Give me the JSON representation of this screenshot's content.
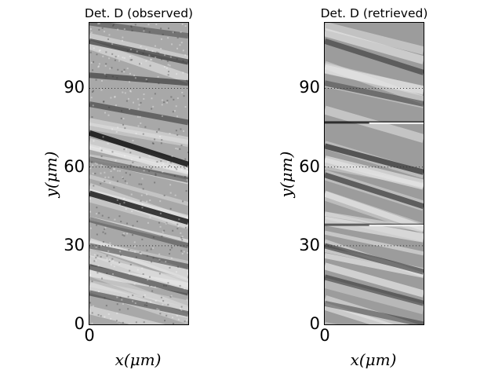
{
  "chart_data": [
    {
      "type": "heatmap",
      "title": "Det. D (observed)",
      "xlabel": "x(μm)",
      "ylabel": "y(μm)",
      "ylim": [
        0,
        115
      ],
      "yticks": [
        "0",
        "30",
        "60",
        "90"
      ],
      "ytick_values": [
        0,
        30,
        60,
        90
      ],
      "xticks": [
        "0"
      ],
      "grid": "horizontal dotted",
      "colormap": "grayscale",
      "dark_streaks": [
        {
          "y_left": 73,
          "y_right": 61,
          "strength": 0.85
        },
        {
          "y_left": 50,
          "y_right": 39,
          "strength": 0.8
        },
        {
          "y_left": 95,
          "y_right": 92,
          "strength": 0.5
        },
        {
          "y_left": 108,
          "y_right": 100,
          "strength": 0.55
        },
        {
          "y_left": 84,
          "y_right": 77,
          "strength": 0.45
        },
        {
          "y_left": 63,
          "y_right": 55,
          "strength": 0.4
        },
        {
          "y_left": 30,
          "y_right": 22,
          "strength": 0.45
        },
        {
          "y_left": 22,
          "y_right": 12,
          "strength": 0.5
        },
        {
          "y_left": 12,
          "y_right": 4,
          "strength": 0.45
        },
        {
          "y_left": 40,
          "y_right": 30,
          "strength": 0.35
        },
        {
          "y_left": 115,
          "y_right": 110,
          "strength": 0.35
        }
      ]
    },
    {
      "type": "heatmap",
      "title": "Det. D (retrieved)",
      "xlabel": "x(μm)",
      "ylabel": "y(μm)",
      "ylim": [
        0,
        115
      ],
      "yticks": [
        "0",
        "30",
        "60",
        "90"
      ],
      "ytick_values": [
        0,
        30,
        60,
        90
      ],
      "xticks": [
        "0"
      ],
      "grid": "horizontal dotted",
      "colormap": "grayscale",
      "dark_streaks": [
        {
          "y_left": 77,
          "y_right": 77,
          "strength": 0.8,
          "thin": true
        },
        {
          "y_left": 38,
          "y_right": 38,
          "strength": 0.6,
          "thin": true
        },
        {
          "y_left": 68,
          "y_right": 58,
          "strength": 0.6
        },
        {
          "y_left": 57,
          "y_right": 45,
          "strength": 0.55
        },
        {
          "y_left": 108,
          "y_right": 96,
          "strength": 0.45
        },
        {
          "y_left": 92,
          "y_right": 84,
          "strength": 0.45
        },
        {
          "y_left": 30,
          "y_right": 20,
          "strength": 0.5
        },
        {
          "y_left": 18,
          "y_right": 8,
          "strength": 0.45
        },
        {
          "y_left": 8,
          "y_right": 0,
          "strength": 0.4
        }
      ]
    }
  ]
}
